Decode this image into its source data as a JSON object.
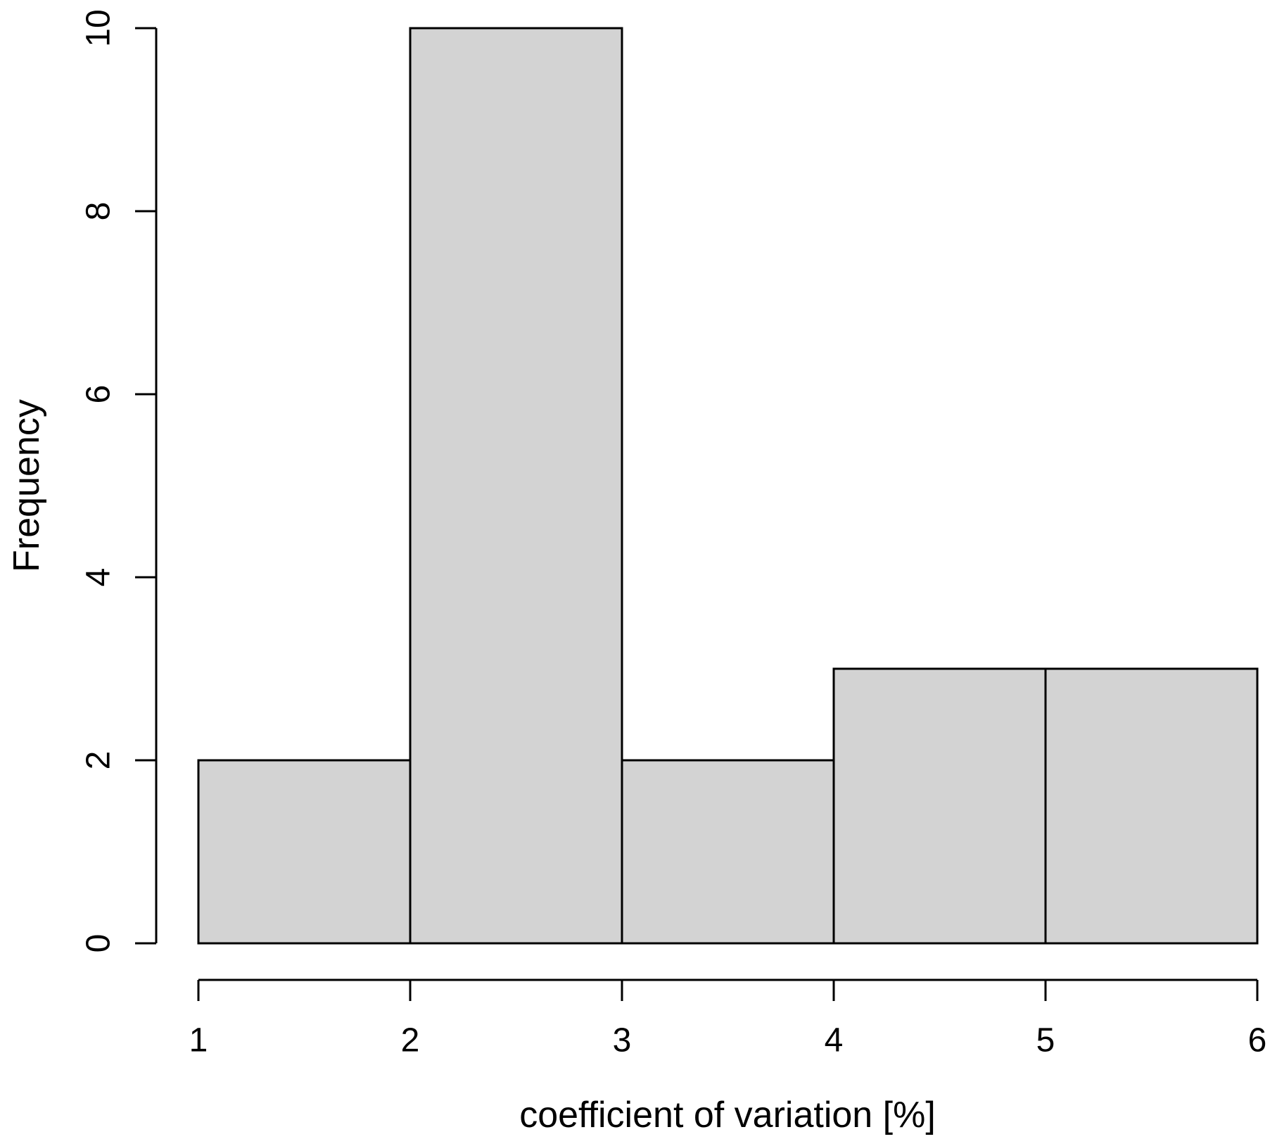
{
  "chart_data": {
    "type": "bar",
    "subtype": "histogram",
    "title": "",
    "xlabel": "coefficient of variation [%]",
    "ylabel": "Frequency",
    "bins": [
      {
        "range": [
          1,
          2
        ],
        "count": 2
      },
      {
        "range": [
          2,
          3
        ],
        "count": 10
      },
      {
        "range": [
          3,
          4
        ],
        "count": 2
      },
      {
        "range": [
          4,
          5
        ],
        "count": 3
      },
      {
        "range": [
          5,
          6
        ],
        "count": 3
      }
    ],
    "x_ticks": [
      1,
      2,
      3,
      4,
      5,
      6
    ],
    "y_ticks": [
      0,
      2,
      4,
      6,
      8,
      10
    ],
    "xlim": [
      1,
      6
    ],
    "ylim": [
      0,
      10
    ],
    "grid": false,
    "legend": false,
    "colors": {
      "bar_fill": "#d3d3d3",
      "bar_stroke": "#000000",
      "axis": "#000000",
      "text": "#000000",
      "background": "#ffffff"
    }
  }
}
